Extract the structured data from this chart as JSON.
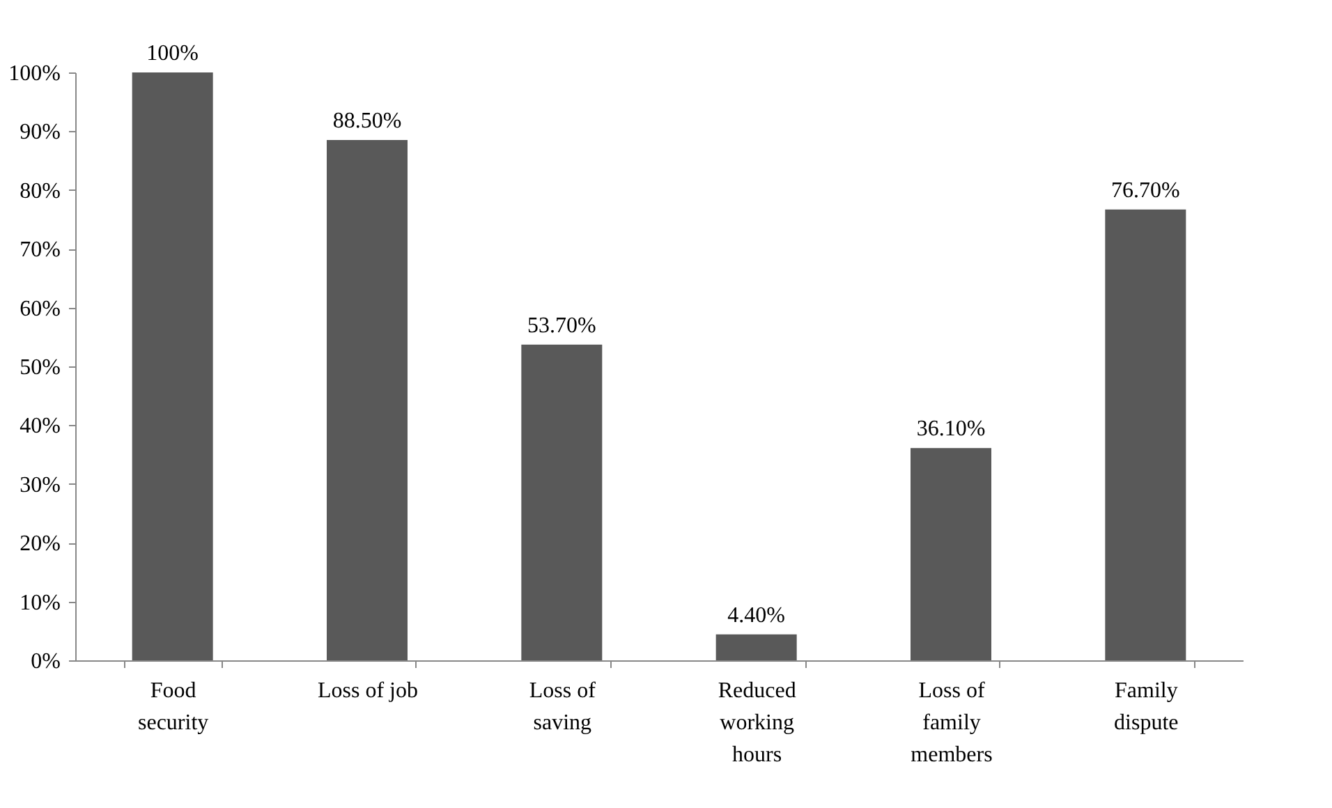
{
  "chart_data": {
    "type": "bar",
    "categories": [
      "Food\nsecurity",
      "Loss of job",
      "Loss of\nsaving",
      "Reduced\nworking\nhours",
      "Loss of\nfamily\nmembers",
      "Family\ndispute"
    ],
    "values": [
      100,
      88.5,
      53.7,
      4.4,
      36.1,
      76.7
    ],
    "value_labels": [
      "100%",
      "88.50%",
      "53.70%",
      "4.40%",
      "36.10%",
      "76.70%"
    ],
    "color": "#595959",
    "ylim": [
      0,
      100
    ],
    "yticks": [
      {
        "value": 0,
        "label": "0%"
      },
      {
        "value": 10,
        "label": "10%"
      },
      {
        "value": 20,
        "label": "20%"
      },
      {
        "value": 30,
        "label": "30%"
      },
      {
        "value": 40,
        "label": "40%"
      },
      {
        "value": 50,
        "label": "50%"
      },
      {
        "value": 60,
        "label": "60%"
      },
      {
        "value": 70,
        "label": "70%"
      },
      {
        "value": 80,
        "label": "80%"
      },
      {
        "value": 90,
        "label": "90%"
      },
      {
        "value": 100,
        "label": "100%"
      }
    ],
    "grid": false
  }
}
